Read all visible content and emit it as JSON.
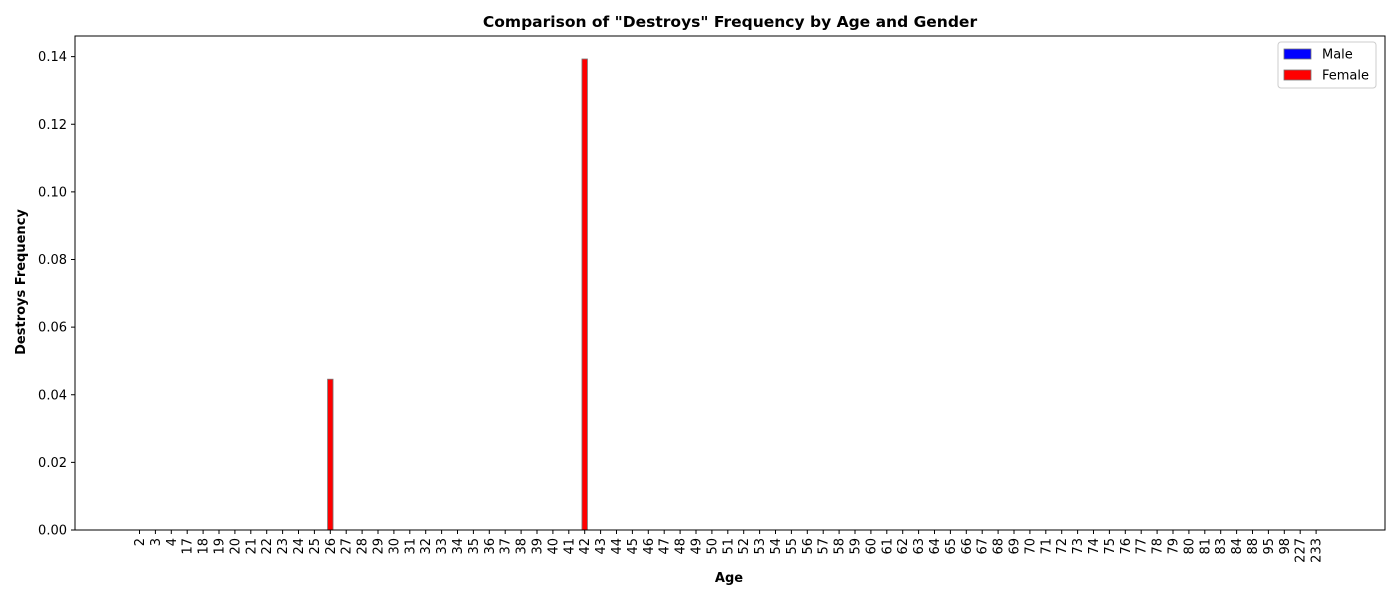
{
  "chart_data": {
    "type": "bar",
    "title": "Comparison of \"Destroys\" Frequency by Age and Gender",
    "xlabel": "Age",
    "ylabel": "Destroys Frequency",
    "ylim": [
      0,
      0.1461
    ],
    "yticks": [
      "0.00",
      "0.02",
      "0.04",
      "0.06",
      "0.08",
      "0.10",
      "0.12",
      "0.14"
    ],
    "grid": false,
    "legend_position": "top-right",
    "categories": [
      "2",
      "3",
      "4",
      "17",
      "18",
      "19",
      "20",
      "21",
      "22",
      "23",
      "24",
      "25",
      "26",
      "27",
      "28",
      "29",
      "30",
      "31",
      "32",
      "33",
      "34",
      "35",
      "36",
      "37",
      "38",
      "39",
      "40",
      "41",
      "42",
      "43",
      "44",
      "45",
      "46",
      "47",
      "48",
      "49",
      "50",
      "51",
      "52",
      "53",
      "54",
      "55",
      "56",
      "57",
      "58",
      "59",
      "60",
      "61",
      "62",
      "63",
      "64",
      "65",
      "66",
      "67",
      "68",
      "69",
      "70",
      "71",
      "72",
      "73",
      "74",
      "75",
      "76",
      "77",
      "78",
      "79",
      "80",
      "81",
      "83",
      "84",
      "88",
      "95",
      "98",
      "227",
      "233"
    ],
    "series": [
      {
        "name": "Male",
        "color": "#0000ff",
        "values": [
          0,
          0,
          0,
          0,
          0,
          0,
          0,
          0,
          0,
          0,
          0,
          0,
          0,
          0,
          0,
          0,
          0,
          0,
          0,
          0,
          0,
          0,
          0,
          0,
          0,
          0,
          0,
          0,
          0,
          0,
          0,
          0,
          0,
          0,
          0,
          0,
          0,
          0,
          0,
          0,
          0,
          0,
          0,
          0,
          0,
          0,
          0,
          0,
          0,
          0,
          0,
          0,
          0,
          0,
          0,
          0,
          0,
          0,
          0,
          0,
          0,
          0,
          0,
          0,
          0,
          0,
          0,
          0,
          0,
          0,
          0,
          0,
          0,
          0,
          0
        ]
      },
      {
        "name": "Female",
        "color": "#ff0000",
        "values": [
          0,
          0,
          0,
          0,
          0,
          0,
          0,
          0,
          0,
          0,
          0,
          0,
          0.0446,
          0,
          0,
          0,
          0,
          0,
          0,
          0,
          0,
          0,
          0,
          0,
          0,
          0,
          0,
          0,
          0.1393,
          0,
          0,
          0,
          0,
          0,
          0,
          0,
          0,
          0,
          0,
          0,
          0,
          0,
          0,
          0,
          0,
          0,
          0,
          0,
          0,
          0,
          0,
          0,
          0,
          0,
          0,
          0,
          0,
          0,
          0,
          0,
          0,
          0,
          0,
          0,
          0,
          0,
          0,
          0,
          0,
          0,
          0,
          0,
          0,
          0,
          0
        ]
      }
    ]
  }
}
